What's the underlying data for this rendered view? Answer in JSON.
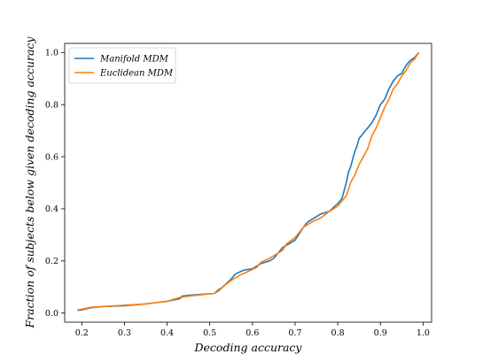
{
  "chart_data": {
    "type": "line",
    "title": "",
    "xlabel": "Decoding accuracy",
    "ylabel": "Fraction of subjects below given decoding accuracy",
    "xlim": [
      0.16,
      1.02
    ],
    "ylim": [
      -0.035,
      1.035
    ],
    "xticks": [
      "0.2",
      "0.3",
      "0.4",
      "0.5",
      "0.6",
      "0.7",
      "0.8",
      "0.9",
      "1.0"
    ],
    "xtick_values": [
      0.2,
      0.3,
      0.4,
      0.5,
      0.6,
      0.7,
      0.8,
      0.9,
      1.0
    ],
    "yticks": [
      "0.0",
      "0.2",
      "0.4",
      "0.6",
      "0.8",
      "1.0"
    ],
    "ytick_values": [
      0.0,
      0.2,
      0.4,
      0.6,
      0.8,
      1.0
    ],
    "grid": false,
    "legend_position": "top-left",
    "series": [
      {
        "name": "Manifold MDM",
        "color": "#1f77b4",
        "x": [
          0.19,
          0.2,
          0.22,
          0.25,
          0.3,
          0.35,
          0.4,
          0.43,
          0.435,
          0.45,
          0.48,
          0.51,
          0.52,
          0.53,
          0.55,
          0.56,
          0.58,
          0.6,
          0.62,
          0.64,
          0.65,
          0.67,
          0.69,
          0.7,
          0.72,
          0.73,
          0.75,
          0.76,
          0.78,
          0.8,
          0.81,
          0.815,
          0.82,
          0.825,
          0.83,
          0.84,
          0.845,
          0.85,
          0.86,
          0.87,
          0.88,
          0.89,
          0.9,
          0.91,
          0.92,
          0.93,
          0.94,
          0.95,
          0.96,
          0.97,
          0.98,
          0.99
        ],
        "y": [
          0.01,
          0.012,
          0.02,
          0.025,
          0.028,
          0.035,
          0.045,
          0.055,
          0.065,
          0.068,
          0.072,
          0.075,
          0.085,
          0.1,
          0.13,
          0.15,
          0.165,
          0.17,
          0.19,
          0.2,
          0.21,
          0.25,
          0.27,
          0.28,
          0.33,
          0.35,
          0.37,
          0.38,
          0.39,
          0.42,
          0.44,
          0.47,
          0.5,
          0.54,
          0.56,
          0.62,
          0.64,
          0.67,
          0.69,
          0.71,
          0.73,
          0.76,
          0.8,
          0.82,
          0.86,
          0.89,
          0.91,
          0.92,
          0.95,
          0.97,
          0.98,
          1.0
        ]
      },
      {
        "name": "Euclidean MDM",
        "color": "#ff7f0e",
        "x": [
          0.19,
          0.2,
          0.22,
          0.25,
          0.3,
          0.35,
          0.4,
          0.43,
          0.45,
          0.48,
          0.51,
          0.52,
          0.53,
          0.55,
          0.57,
          0.59,
          0.61,
          0.62,
          0.64,
          0.65,
          0.67,
          0.68,
          0.7,
          0.72,
          0.74,
          0.76,
          0.78,
          0.8,
          0.81,
          0.82,
          0.83,
          0.84,
          0.85,
          0.86,
          0.87,
          0.88,
          0.89,
          0.9,
          0.91,
          0.92,
          0.93,
          0.94,
          0.95,
          0.96,
          0.97,
          0.98,
          0.99
        ],
        "y": [
          0.012,
          0.015,
          0.022,
          0.025,
          0.03,
          0.035,
          0.045,
          0.06,
          0.065,
          0.07,
          0.075,
          0.09,
          0.1,
          0.125,
          0.145,
          0.16,
          0.175,
          0.195,
          0.21,
          0.22,
          0.24,
          0.265,
          0.29,
          0.33,
          0.35,
          0.365,
          0.39,
          0.41,
          0.43,
          0.45,
          0.5,
          0.53,
          0.57,
          0.6,
          0.63,
          0.68,
          0.71,
          0.75,
          0.79,
          0.82,
          0.86,
          0.88,
          0.91,
          0.93,
          0.96,
          0.975,
          1.0
        ]
      }
    ]
  }
}
